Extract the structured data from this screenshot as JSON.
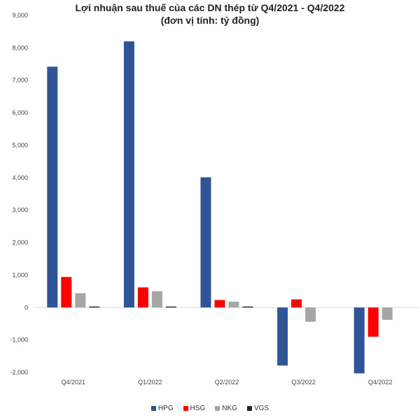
{
  "chart_data": {
    "type": "bar",
    "title": "Lợi nhuận sau thuế của các DN thép từ Q4/2021 - Q4/2022",
    "subtitle": "(đơn vị tính: tỷ đồng)",
    "xlabel": "",
    "ylabel": "",
    "categories": [
      "Q4/2021",
      "Q1/2022",
      "Q2/2022",
      "Q3/2022",
      "Q4/2022"
    ],
    "series": [
      {
        "name": "HPG",
        "color": "#2f5597",
        "values": [
          7420,
          8200,
          4010,
          -1790,
          -2030
        ]
      },
      {
        "name": "HSG",
        "color": "#ff0000",
        "values": [
          940,
          620,
          230,
          250,
          -900
        ]
      },
      {
        "name": "NKG",
        "color": "#a6a6a6",
        "values": [
          440,
          500,
          180,
          -440,
          -380
        ]
      },
      {
        "name": "VGS",
        "color": "#262626",
        "values": [
          30,
          30,
          30,
          0,
          0
        ]
      }
    ],
    "ylim": [
      -2000,
      9000
    ],
    "yticks": [
      "-2,000",
      "-1,000",
      "0",
      "1,000",
      "2,000",
      "3,000",
      "4,000",
      "5,000",
      "6,000",
      "7,000",
      "8,000",
      "9,000"
    ],
    "ytick_values": [
      -2000,
      -1000,
      0,
      1000,
      2000,
      3000,
      4000,
      5000,
      6000,
      7000,
      8000,
      9000
    ],
    "grid": false,
    "legend_position": "bottom"
  }
}
